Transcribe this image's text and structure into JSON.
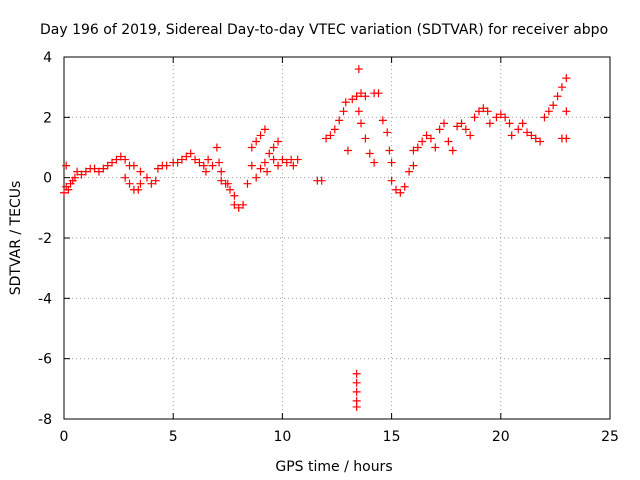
{
  "chart_data": {
    "type": "scatter",
    "title": "Day 196 of 2019, Sidereal Day-to-day VTEC variation (SDTVAR) for receiver abpo",
    "xlabel": "GPS time / hours",
    "ylabel": "SDTVAR / TECUs",
    "xlim": [
      0,
      25
    ],
    "ylim": [
      -8,
      4
    ],
    "xticks": [
      0,
      5,
      10,
      15,
      20,
      25
    ],
    "yticks": [
      -8,
      -6,
      -4,
      -2,
      0,
      2,
      4
    ],
    "grid": true,
    "marker": "+",
    "color": "#ff0000",
    "series": [
      {
        "name": "SDTVAR",
        "points": [
          [
            0.0,
            -0.5
          ],
          [
            0.1,
            -0.3
          ],
          [
            0.2,
            -0.4
          ],
          [
            0.3,
            -0.2
          ],
          [
            0.1,
            0.4
          ],
          [
            0.4,
            -0.1
          ],
          [
            0.5,
            0.0
          ],
          [
            0.6,
            0.2
          ],
          [
            0.8,
            0.1
          ],
          [
            1.0,
            0.2
          ],
          [
            1.2,
            0.3
          ],
          [
            1.4,
            0.3
          ],
          [
            1.6,
            0.2
          ],
          [
            1.8,
            0.3
          ],
          [
            2.0,
            0.4
          ],
          [
            2.2,
            0.5
          ],
          [
            2.4,
            0.6
          ],
          [
            2.6,
            0.7
          ],
          [
            2.8,
            0.6
          ],
          [
            3.0,
            0.4
          ],
          [
            2.8,
            0.0
          ],
          [
            3.0,
            -0.2
          ],
          [
            3.2,
            -0.4
          ],
          [
            3.4,
            -0.4
          ],
          [
            3.5,
            -0.2
          ],
          [
            3.2,
            0.4
          ],
          [
            3.5,
            0.2
          ],
          [
            3.8,
            0.0
          ],
          [
            4.0,
            -0.2
          ],
          [
            4.2,
            -0.1
          ],
          [
            4.3,
            0.3
          ],
          [
            4.5,
            0.4
          ],
          [
            4.7,
            0.4
          ],
          [
            5.0,
            0.5
          ],
          [
            5.2,
            0.5
          ],
          [
            5.4,
            0.6
          ],
          [
            5.6,
            0.7
          ],
          [
            5.8,
            0.8
          ],
          [
            6.0,
            0.6
          ],
          [
            6.2,
            0.5
          ],
          [
            6.4,
            0.4
          ],
          [
            6.5,
            0.2
          ],
          [
            6.6,
            0.6
          ],
          [
            6.8,
            0.4
          ],
          [
            7.0,
            1.0
          ],
          [
            7.1,
            0.5
          ],
          [
            7.2,
            0.2
          ],
          [
            7.4,
            -0.2
          ],
          [
            7.6,
            -0.4
          ],
          [
            7.8,
            -0.6
          ],
          [
            7.8,
            -0.9
          ],
          [
            8.0,
            -1.0
          ],
          [
            8.2,
            -0.9
          ],
          [
            7.2,
            -0.1
          ],
          [
            7.5,
            -0.2
          ],
          [
            8.4,
            -0.2
          ],
          [
            8.6,
            0.4
          ],
          [
            8.6,
            1.0
          ],
          [
            8.8,
            1.2
          ],
          [
            9.0,
            1.4
          ],
          [
            9.2,
            1.6
          ],
          [
            8.8,
            0.0
          ],
          [
            9.0,
            0.3
          ],
          [
            9.2,
            0.5
          ],
          [
            9.4,
            0.8
          ],
          [
            9.6,
            1.0
          ],
          [
            9.8,
            1.2
          ],
          [
            9.6,
            0.6
          ],
          [
            9.8,
            0.4
          ],
          [
            10.0,
            0.6
          ],
          [
            10.2,
            0.5
          ],
          [
            10.4,
            0.6
          ],
          [
            10.5,
            0.4
          ],
          [
            10.7,
            0.6
          ],
          [
            9.3,
            0.2
          ],
          [
            11.6,
            -0.1
          ],
          [
            11.8,
            -0.1
          ],
          [
            12.0,
            1.3
          ],
          [
            12.2,
            1.4
          ],
          [
            12.4,
            1.6
          ],
          [
            12.6,
            1.9
          ],
          [
            12.8,
            2.2
          ],
          [
            12.9,
            2.5
          ],
          [
            13.0,
            0.9
          ],
          [
            13.2,
            2.6
          ],
          [
            13.4,
            2.7
          ],
          [
            13.6,
            2.8
          ],
          [
            13.8,
            2.7
          ],
          [
            13.5,
            3.6
          ],
          [
            13.5,
            2.2
          ],
          [
            13.6,
            1.8
          ],
          [
            13.8,
            1.3
          ],
          [
            14.0,
            0.8
          ],
          [
            14.2,
            0.5
          ],
          [
            14.2,
            2.8
          ],
          [
            14.4,
            2.8
          ],
          [
            14.6,
            1.9
          ],
          [
            14.8,
            1.5
          ],
          [
            14.9,
            0.9
          ],
          [
            15.0,
            0.5
          ],
          [
            15.0,
            -0.1
          ],
          [
            15.2,
            -0.4
          ],
          [
            15.4,
            -0.5
          ],
          [
            15.6,
            -0.3
          ],
          [
            15.8,
            0.2
          ],
          [
            16.0,
            0.4
          ],
          [
            16.0,
            0.9
          ],
          [
            16.2,
            1.0
          ],
          [
            16.4,
            1.2
          ],
          [
            16.6,
            1.4
          ],
          [
            16.8,
            1.3
          ],
          [
            17.0,
            1.0
          ],
          [
            17.2,
            1.6
          ],
          [
            17.4,
            1.8
          ],
          [
            17.6,
            1.2
          ],
          [
            17.8,
            0.9
          ],
          [
            18.0,
            1.7
          ],
          [
            18.2,
            1.8
          ],
          [
            18.4,
            1.6
          ],
          [
            18.6,
            1.4
          ],
          [
            18.8,
            2.0
          ],
          [
            19.0,
            2.2
          ],
          [
            19.2,
            2.3
          ],
          [
            19.4,
            2.2
          ],
          [
            19.5,
            1.8
          ],
          [
            19.8,
            2.0
          ],
          [
            20.0,
            2.1
          ],
          [
            20.2,
            2.0
          ],
          [
            20.4,
            1.8
          ],
          [
            20.5,
            1.4
          ],
          [
            20.8,
            1.6
          ],
          [
            21.0,
            1.8
          ],
          [
            21.2,
            1.5
          ],
          [
            21.4,
            1.4
          ],
          [
            21.6,
            1.3
          ],
          [
            21.8,
            1.2
          ],
          [
            22.0,
            2.0
          ],
          [
            22.2,
            2.2
          ],
          [
            22.4,
            2.4
          ],
          [
            22.6,
            2.7
          ],
          [
            22.8,
            3.0
          ],
          [
            23.0,
            3.3
          ],
          [
            23.0,
            2.2
          ],
          [
            22.8,
            1.3
          ],
          [
            23.0,
            1.3
          ],
          [
            13.4,
            -6.5
          ],
          [
            13.4,
            -6.8
          ],
          [
            13.4,
            -7.1
          ],
          [
            13.4,
            -7.4
          ],
          [
            13.4,
            -7.6
          ]
        ]
      }
    ]
  }
}
